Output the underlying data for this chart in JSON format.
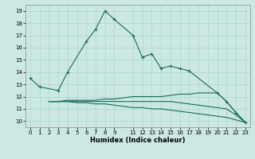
{
  "title": "",
  "xlabel": "Humidex (Indice chaleur)",
  "background_color": "#cce8e4",
  "line_color": "#1a6b5a",
  "grid_color": "#aad4cc",
  "line0_x": [
    0,
    1,
    3,
    4,
    6,
    7,
    8,
    9,
    11,
    12,
    13,
    14,
    15,
    16,
    17,
    20,
    21,
    22,
    23
  ],
  "line0_y": [
    13.5,
    12.8,
    12.5,
    14.0,
    16.5,
    17.5,
    19.0,
    18.3,
    17.0,
    15.2,
    15.5,
    14.3,
    14.5,
    14.3,
    14.1,
    12.3,
    11.6,
    10.7,
    9.9
  ],
  "line1_x": [
    2,
    3,
    4,
    5,
    6,
    7,
    8,
    9,
    10,
    11,
    12,
    13,
    14,
    15,
    16,
    17,
    18,
    19,
    20,
    21,
    22,
    23
  ],
  "line1_y": [
    11.6,
    11.6,
    11.7,
    11.7,
    11.7,
    11.7,
    11.8,
    11.8,
    11.9,
    12.0,
    12.0,
    12.0,
    12.0,
    12.1,
    12.2,
    12.2,
    12.3,
    12.3,
    12.3,
    11.6,
    10.7,
    9.9
  ],
  "line2_x": [
    2,
    3,
    4,
    5,
    6,
    7,
    8,
    9,
    10,
    11,
    12,
    13,
    14,
    15,
    16,
    17,
    18,
    19,
    20,
    21,
    22,
    23
  ],
  "line2_y": [
    11.6,
    11.6,
    11.6,
    11.6,
    11.6,
    11.6,
    11.6,
    11.6,
    11.6,
    11.6,
    11.6,
    11.6,
    11.6,
    11.6,
    11.5,
    11.4,
    11.3,
    11.2,
    11.1,
    11.0,
    10.5,
    9.9
  ],
  "line3_x": [
    2,
    3,
    4,
    5,
    6,
    7,
    8,
    9,
    10,
    11,
    12,
    13,
    14,
    15,
    16,
    17,
    18,
    19,
    20,
    21,
    22,
    23
  ],
  "line3_y": [
    11.6,
    11.6,
    11.6,
    11.5,
    11.5,
    11.4,
    11.4,
    11.3,
    11.2,
    11.1,
    11.1,
    11.0,
    11.0,
    10.9,
    10.8,
    10.7,
    10.6,
    10.5,
    10.4,
    10.3,
    10.1,
    9.9
  ],
  "xlim": [
    -0.5,
    23.5
  ],
  "ylim": [
    9.5,
    19.5
  ],
  "yticks": [
    10,
    11,
    12,
    13,
    14,
    15,
    16,
    17,
    18,
    19
  ],
  "xticks": [
    0,
    1,
    2,
    3,
    4,
    5,
    6,
    7,
    8,
    9,
    11,
    12,
    13,
    14,
    15,
    16,
    17,
    18,
    19,
    20,
    21,
    22,
    23
  ],
  "tick_fontsize": 5.0,
  "xlabel_fontsize": 6.0
}
